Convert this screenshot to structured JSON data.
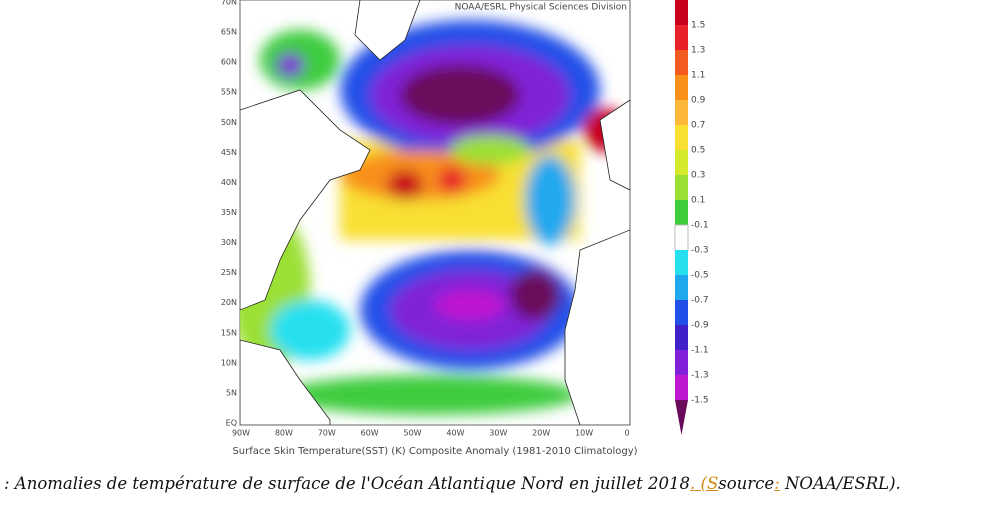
{
  "map": {
    "header": "NOAA/ESRL Physical Sciences Division",
    "lat_labels": [
      "70N",
      "65N",
      "60N",
      "55N",
      "50N",
      "45N",
      "40N",
      "35N",
      "30N",
      "25N",
      "20N",
      "15N",
      "10N",
      "5N",
      "EQ"
    ],
    "lon_labels": [
      "90W",
      "80W",
      "70W",
      "60W",
      "50W",
      "40W",
      "30W",
      "20W",
      "10W",
      "0"
    ],
    "footer": "Surface Skin Temperature(SST) (K) Composite Anomaly (1981-2010 Climatology)"
  },
  "colorbar": {
    "labels": [
      "1.5",
      "1.3",
      "1.1",
      "0.9",
      "0.7",
      "0.5",
      "0.3",
      "0.1",
      "-0.1",
      "-0.3",
      "-0.5",
      "-0.7",
      "-0.9",
      "-1.1",
      "-1.3",
      "-1.5"
    ],
    "colors": [
      "#c8001e",
      "#e8202a",
      "#f25a1e",
      "#f8901a",
      "#fcb83a",
      "#f8e030",
      "#d6ea2c",
      "#9be034",
      "#3ccc3c",
      "#ffffff",
      "#26e0f0",
      "#20a8ee",
      "#2050e8",
      "#4020c8",
      "#8020d8",
      "#c018d0",
      "#6a0a5a"
    ]
  },
  "caption": {
    "text": ": Anomalies de température de surface de l'Océan Atlantique Nord en juillet 2018",
    "marks": [
      ". (",
      "S",
      "s",
      "ource",
      ":",
      " NOAA/ESRL",
      ")",
      "."
    ]
  }
}
